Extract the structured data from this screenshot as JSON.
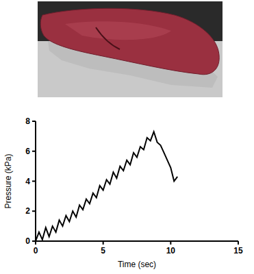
{
  "chart_data": {
    "type": "line",
    "x_label": "Time (sec)",
    "y_label": "Pressure (kPa)",
    "x": [
      0,
      0.25,
      0.5,
      0.75,
      1,
      1.25,
      1.5,
      1.75,
      2,
      2.25,
      2.5,
      2.75,
      3,
      3.25,
      3.5,
      3.75,
      4,
      4.25,
      4.5,
      4.75,
      5,
      5.25,
      5.5,
      5.75,
      6,
      6.25,
      6.5,
      6.75,
      7,
      7.25,
      7.5,
      7.75,
      8,
      8.25,
      8.5,
      8.75,
      9,
      9.25,
      9.5,
      9.75,
      10,
      10.25,
      10.5
    ],
    "values": [
      0,
      0.6,
      0.1,
      0.9,
      0.3,
      1.0,
      0.6,
      1.4,
      1.0,
      1.7,
      1.3,
      2.0,
      1.6,
      2.4,
      2.1,
      2.8,
      2.5,
      3.2,
      2.9,
      3.7,
      3.4,
      4.1,
      3.8,
      4.6,
      4.2,
      5.0,
      4.7,
      5.4,
      5.1,
      5.9,
      5.6,
      6.3,
      6.1,
      6.9,
      6.7,
      7.3,
      6.6,
      6.4,
      5.9,
      5.4,
      4.9,
      4.0,
      4.3
    ],
    "color": "#000000",
    "xlim": [
      0,
      15
    ],
    "ylim": [
      0,
      8
    ],
    "xticks": [
      0,
      5,
      10,
      15
    ],
    "yticks": [
      0,
      2,
      4,
      6,
      8
    ],
    "grid": false
  }
}
